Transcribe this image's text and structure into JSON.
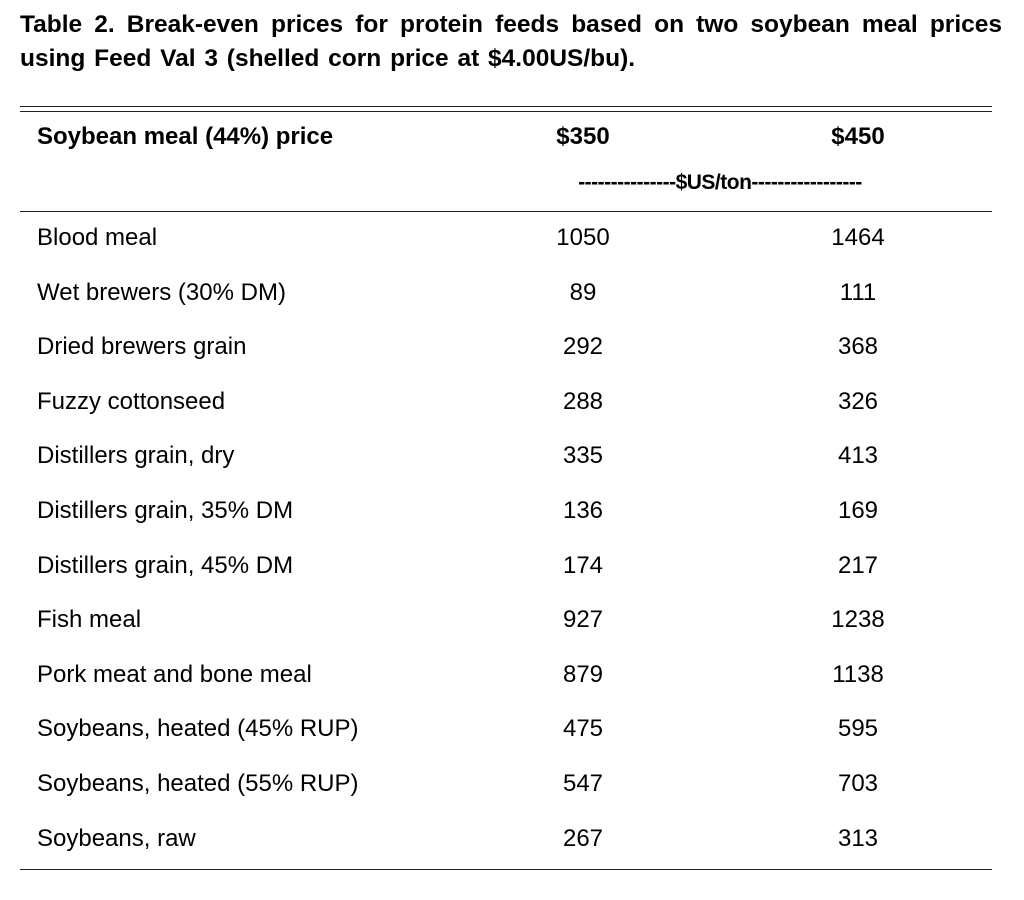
{
  "title": "Table 2.  Break-even prices for protein feeds based on two soybean meal prices using Feed Val 3 (shelled corn price at $4.00US/bu).",
  "table": {
    "header": [
      "Soybean meal (44%) price",
      "$350",
      "$450"
    ],
    "unit_label": "---------------$US/ton-----------------",
    "rows": [
      [
        "Blood meal",
        1050,
        1464
      ],
      [
        "Wet brewers (30% DM)",
        89,
        111
      ],
      [
        "Dried brewers grain",
        292,
        368
      ],
      [
        "Fuzzy cottonseed",
        288,
        326
      ],
      [
        "Distillers grain, dry",
        335,
        413
      ],
      [
        "Distillers grain, 35% DM",
        136,
        169
      ],
      [
        "Distillers grain, 45% DM",
        174,
        217
      ],
      [
        "Fish meal",
        927,
        1238
      ],
      [
        "Pork meat and bone meal",
        879,
        1138
      ],
      [
        "Soybeans, heated (45% RUP)",
        475,
        595
      ],
      [
        "Soybeans, heated (55% RUP)",
        547,
        703
      ],
      [
        "Soybeans, raw",
        267,
        313
      ]
    ]
  }
}
